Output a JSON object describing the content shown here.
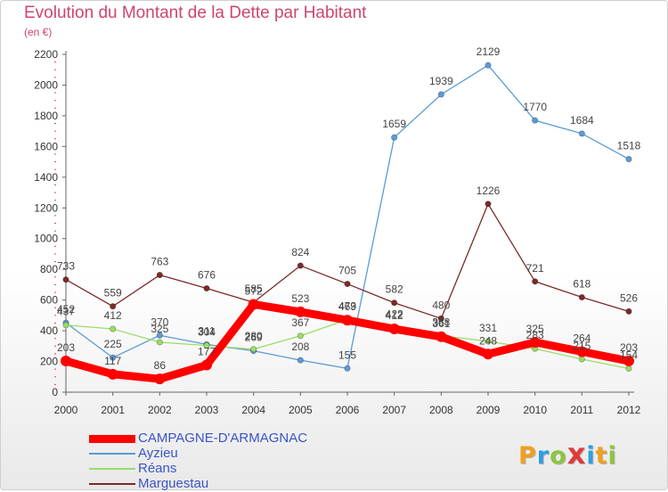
{
  "title": "Evolution du Montant de la Dette par Habitant",
  "subtitle": "(en €)",
  "logo": {
    "letters": [
      "P",
      "r",
      "o",
      "x",
      "i",
      "t",
      "i"
    ],
    "colors": [
      "#f0a020",
      "#2f9fe0",
      "#8cc63f",
      "#e03a3a",
      "#2f9fe0",
      "#f0a020",
      "#8cc63f"
    ]
  },
  "chart_data": {
    "type": "line",
    "x": [
      "2000",
      "2001",
      "2002",
      "2003",
      "2004",
      "2005",
      "2006",
      "2007",
      "2008",
      "2009",
      "2010",
      "2011",
      "2012"
    ],
    "yticks": [
      "0",
      "200",
      "400",
      "600",
      "800",
      "1000",
      "1200",
      "1400",
      "1600",
      "1800",
      "2000",
      "2200"
    ],
    "ylim": [
      0,
      2200
    ],
    "grid": false,
    "legend_position": "bottom-left",
    "series": [
      {
        "name": "CAMPAGNE-D'ARMAGNAC",
        "color": "#ff0000",
        "thick": true,
        "values": [
          203,
          117,
          86,
          177,
          572,
          523,
          469,
          412,
          361,
          248,
          325,
          264,
          203
        ],
        "labels": [
          "203",
          "117",
          "86",
          "177",
          "572",
          "523",
          "469",
          "412",
          "361",
          "248",
          "325",
          "264",
          "203"
        ]
      },
      {
        "name": "Ayzieu",
        "color": "#5b9bd5",
        "thick": false,
        "values": [
          452,
          225,
          370,
          311,
          269,
          208,
          155,
          1659,
          1939,
          2129,
          1770,
          1684,
          1518
        ],
        "labels": [
          "452",
          "225",
          "370",
          "311",
          "269",
          "208",
          "155",
          "1659",
          "1939",
          "2129",
          "1770",
          "1684",
          "1518"
        ]
      },
      {
        "name": "Réans",
        "color": "#99dd66",
        "thick": false,
        "values": [
          437,
          412,
          325,
          304,
          280,
          367,
          473,
          422,
          368,
          331,
          283,
          215,
          154
        ],
        "labels": [
          "437",
          "412",
          "325",
          "304",
          "280",
          "367",
          "473",
          "422",
          "368",
          "331",
          "283",
          "215",
          "154"
        ]
      },
      {
        "name": "Marguestau",
        "color": "#7a2a2a",
        "thick": false,
        "values": [
          733,
          559,
          763,
          676,
          585,
          824,
          705,
          582,
          480,
          1226,
          721,
          618,
          526
        ],
        "labels": [
          "733",
          "559",
          "763",
          "676",
          "585",
          "824",
          "705",
          "582",
          "480",
          "1226",
          "721",
          "618",
          "526"
        ]
      }
    ]
  }
}
